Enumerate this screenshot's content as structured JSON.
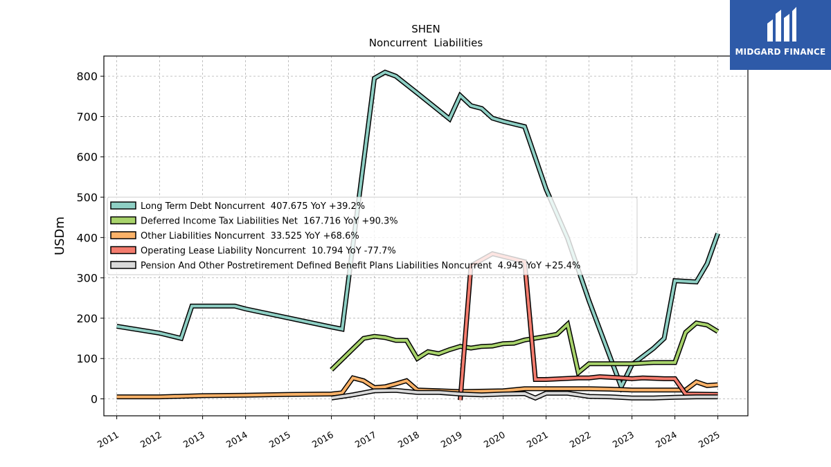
{
  "brand": {
    "name": "MIDGARD FINANCE",
    "background": "#2e5aa8"
  },
  "chart_data": {
    "type": "line",
    "title": "SHEN",
    "subtitle": "Noncurrent  Liabilities",
    "xlabel": "",
    "ylabel": "USDm",
    "xlim": [
      2010.7,
      2025.7
    ],
    "ylim": [
      -42,
      850
    ],
    "x_ticks": [
      "2011",
      "2012",
      "2013",
      "2014",
      "2015",
      "2016",
      "2017",
      "2018",
      "2019",
      "2020",
      "2021",
      "2022",
      "2023",
      "2024",
      "2025"
    ],
    "y_ticks": [
      0,
      100,
      200,
      300,
      400,
      500,
      600,
      700,
      800
    ],
    "grid": true,
    "legend_position": "center-left",
    "series": [
      {
        "name": "Long Term Debt Noncurrent",
        "legend": "Long Term Debt Noncurrent  407.675 YoY +39.2%",
        "color": "#8ecfc4",
        "points": [
          [
            2011.0,
            180
          ],
          [
            2012.0,
            163
          ],
          [
            2012.5,
            150
          ],
          [
            2012.75,
            230
          ],
          [
            2013.0,
            230
          ],
          [
            2013.75,
            230
          ],
          [
            2014.0,
            223
          ],
          [
            2016.0,
            178
          ],
          [
            2016.25,
            173
          ],
          [
            2017.0,
            795
          ],
          [
            2017.25,
            810
          ],
          [
            2017.5,
            800
          ],
          [
            2018.0,
            758
          ],
          [
            2018.75,
            694
          ],
          [
            2019.0,
            752
          ],
          [
            2019.25,
            727
          ],
          [
            2019.5,
            720
          ],
          [
            2019.75,
            696
          ],
          [
            2020.0,
            688
          ],
          [
            2020.5,
            675
          ],
          [
            2021.0,
            520
          ],
          [
            2021.5,
            398
          ],
          [
            2022.0,
            243
          ],
          [
            2022.75,
            30
          ],
          [
            2023.0,
            85
          ],
          [
            2023.5,
            125
          ],
          [
            2023.75,
            150
          ],
          [
            2024.0,
            293
          ],
          [
            2024.5,
            290
          ],
          [
            2024.75,
            335
          ],
          [
            2025.0,
            410
          ]
        ]
      },
      {
        "name": "Deferred Income Tax Liabilities Net",
        "legend": "Deferred Income Tax Liabilities Net  167.716 YoY +90.3%",
        "color": "#a8d36b",
        "points": [
          [
            2016.0,
            72
          ],
          [
            2016.75,
            150
          ],
          [
            2017.0,
            155
          ],
          [
            2017.25,
            152
          ],
          [
            2017.5,
            145
          ],
          [
            2017.75,
            145
          ],
          [
            2018.0,
            100
          ],
          [
            2018.25,
            117
          ],
          [
            2018.5,
            112
          ],
          [
            2018.75,
            122
          ],
          [
            2019.0,
            130
          ],
          [
            2019.25,
            126
          ],
          [
            2019.5,
            130
          ],
          [
            2019.75,
            131
          ],
          [
            2020.0,
            137
          ],
          [
            2020.25,
            138
          ],
          [
            2020.5,
            146
          ],
          [
            2021.0,
            155
          ],
          [
            2021.25,
            160
          ],
          [
            2021.5,
            185
          ],
          [
            2021.75,
            65
          ],
          [
            2022.0,
            87
          ],
          [
            2022.5,
            87
          ],
          [
            2023.0,
            87
          ],
          [
            2023.5,
            90
          ],
          [
            2024.0,
            90
          ],
          [
            2024.25,
            165
          ],
          [
            2024.5,
            188
          ],
          [
            2024.75,
            183
          ],
          [
            2025.0,
            167
          ]
        ]
      },
      {
        "name": "Other Liabilities Noncurrent",
        "legend": "Other Liabilities Noncurrent  33.525 YoY +68.6%",
        "color": "#fbb268",
        "points": [
          [
            2011.0,
            5
          ],
          [
            2012.0,
            5
          ],
          [
            2013.0,
            8
          ],
          [
            2014.0,
            9
          ],
          [
            2015.0,
            11
          ],
          [
            2016.0,
            12
          ],
          [
            2016.25,
            15
          ],
          [
            2016.5,
            52
          ],
          [
            2016.75,
            45
          ],
          [
            2017.0,
            28
          ],
          [
            2017.25,
            30
          ],
          [
            2017.5,
            37
          ],
          [
            2017.75,
            45
          ],
          [
            2018.0,
            22
          ],
          [
            2019.0,
            18
          ],
          [
            2020.0,
            20
          ],
          [
            2020.5,
            25
          ],
          [
            2021.0,
            25
          ],
          [
            2022.0,
            25
          ],
          [
            2022.5,
            24
          ],
          [
            2023.0,
            22
          ],
          [
            2024.0,
            22
          ],
          [
            2024.25,
            22
          ],
          [
            2024.5,
            42
          ],
          [
            2024.75,
            33
          ],
          [
            2025.0,
            35
          ]
        ]
      },
      {
        "name": "Operating Lease Liability Noncurrent",
        "legend": "Operating Lease Liability Noncurrent  10.794 YoY -77.7%",
        "color": "#f47c6e",
        "points": [
          [
            2019.0,
            -3
          ],
          [
            2019.25,
            330
          ],
          [
            2019.75,
            360
          ],
          [
            2020.5,
            340
          ],
          [
            2020.75,
            48
          ],
          [
            2021.0,
            48
          ],
          [
            2021.75,
            52
          ],
          [
            2022.0,
            52
          ],
          [
            2022.25,
            55
          ],
          [
            2022.75,
            52
          ],
          [
            2023.0,
            50
          ],
          [
            2023.25,
            52
          ],
          [
            2023.75,
            50
          ],
          [
            2024.0,
            50
          ],
          [
            2024.25,
            12
          ],
          [
            2025.0,
            11
          ]
        ]
      },
      {
        "name": "Pension And Other Postretirement Defined Benefit Plans Liabilities Noncurrent",
        "legend": "Pension And Other Postretirement Defined Benefit Plans Liabilities Noncurrent  4.945 YoY +25.4%",
        "color": "#d9d9d9",
        "points": [
          [
            2016.0,
            2
          ],
          [
            2016.5,
            10
          ],
          [
            2017.0,
            20
          ],
          [
            2017.5,
            21
          ],
          [
            2018.0,
            16
          ],
          [
            2018.5,
            16
          ],
          [
            2019.0,
            12
          ],
          [
            2019.5,
            10
          ],
          [
            2020.0,
            12
          ],
          [
            2020.5,
            13
          ],
          [
            2020.75,
            2
          ],
          [
            2021.0,
            14
          ],
          [
            2021.5,
            14
          ],
          [
            2022.0,
            6
          ],
          [
            2022.5,
            5
          ],
          [
            2023.0,
            2
          ],
          [
            2023.5,
            2
          ],
          [
            2024.0,
            4
          ],
          [
            2024.5,
            5
          ],
          [
            2025.0,
            5
          ]
        ]
      }
    ]
  }
}
